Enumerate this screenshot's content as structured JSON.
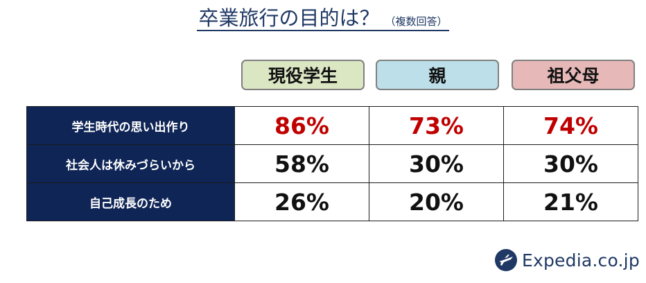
{
  "title": {
    "main": "卒業旅行の目的は？",
    "sub": "（複数回答）"
  },
  "headers": [
    {
      "label": "現役学生",
      "color": "#dbe6c3"
    },
    {
      "label": "親",
      "color": "#bcdfe9"
    },
    {
      "label": "祖父母",
      "color": "#e6b8b8"
    }
  ],
  "chart_data": {
    "type": "table",
    "columns": [
      "現役学生",
      "親",
      "祖父母"
    ],
    "rows": [
      {
        "label": "学生時代の思い出作り",
        "values": [
          "86%",
          "73%",
          "74%"
        ],
        "highlight": true
      },
      {
        "label": "社会人は休みづらいから",
        "values": [
          "58%",
          "30%",
          "30%"
        ]
      },
      {
        "label": "自己成長のため",
        "values": [
          "26%",
          "20%",
          "21%"
        ]
      }
    ],
    "colors": {
      "label_bg": "#0f2556",
      "label_text": "#ffffff",
      "highlight_text": "#c00000",
      "value_text": "#111111"
    }
  },
  "logo": {
    "text": "Expedia.co.jp",
    "color": "#1f3864"
  }
}
